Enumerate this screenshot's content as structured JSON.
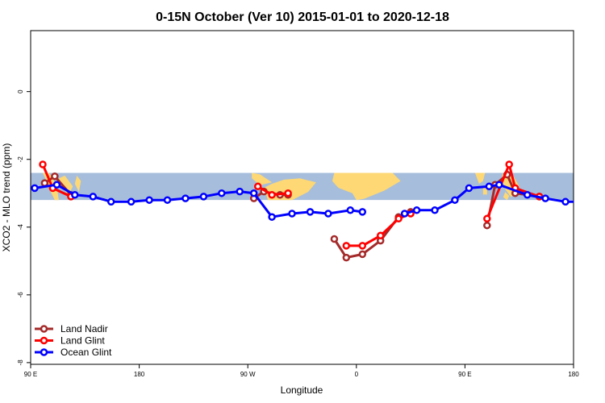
{
  "chart_data": {
    "type": "line",
    "title": "0-15N October (Ver 10)   2015-01-01 to 2020-12-18",
    "xlabel": "Longitude",
    "ylabel": "XCO2 - MLO trend (ppm)",
    "xlim": [
      -90,
      180
    ],
    "ylim": [
      -8.05,
      1.8
    ],
    "x_ticks": [
      {
        "value": -90,
        "label": "90 E"
      },
      {
        "value": -36,
        "label": "180"
      },
      {
        "value": 18,
        "label": "90 W"
      },
      {
        "value": 72,
        "label": "0"
      },
      {
        "value": 126,
        "label": "90 E"
      },
      {
        "value": 180,
        "label": "180"
      }
    ],
    "y_ticks": [
      {
        "value": 0,
        "label": "0"
      },
      {
        "value": -2,
        "label": "-2"
      },
      {
        "value": -4,
        "label": "-4"
      },
      {
        "value": -6,
        "label": "-6"
      },
      {
        "value": -8,
        "label": "-8"
      }
    ],
    "map_band": {
      "ymin": -3.2,
      "ymax": -2.4,
      "ocean_color": "#a6bddb",
      "land_color": "#fdd875"
    },
    "legend_position": "bottom-left",
    "series": [
      {
        "name": "Land Nadir",
        "color": "#a52a2a",
        "segments": [
          [
            [
              -83,
              -2.7
            ],
            [
              -78,
              -2.5
            ],
            [
              -70,
              -3.05
            ]
          ],
          [
            [
              21,
              -3.15
            ],
            [
              26,
              -2.95
            ],
            [
              34,
              -3.05
            ],
            [
              38,
              -3.05
            ]
          ],
          [
            [
              61,
              -4.35
            ],
            [
              67,
              -4.9
            ],
            [
              75,
              -4.8
            ],
            [
              84,
              -4.4
            ],
            [
              93,
              -3.7
            ],
            [
              99,
              -3.55
            ]
          ],
          [
            [
              137,
              -3.95
            ],
            [
              141,
              -2.75
            ],
            [
              147,
              -2.45
            ],
            [
              151,
              -3.0
            ],
            [
              163,
              -3.1
            ]
          ]
        ]
      },
      {
        "name": "Land Glint",
        "color": "#ff0000",
        "segments": [
          [
            [
              -84,
              -2.15
            ],
            [
              -79,
              -2.85
            ],
            [
              -70,
              -3.1
            ]
          ],
          [
            [
              23,
              -2.8
            ],
            [
              30,
              -3.05
            ],
            [
              38,
              -3.0
            ]
          ],
          [
            [
              67,
              -4.55
            ],
            [
              75,
              -4.55
            ],
            [
              84,
              -4.25
            ],
            [
              93,
              -3.75
            ],
            [
              99,
              -3.6
            ]
          ],
          [
            [
              137,
              -3.75
            ],
            [
              148,
              -2.15
            ],
            [
              151,
              -2.85
            ],
            [
              163,
              -3.1
            ]
          ]
        ]
      },
      {
        "name": "Ocean Glint",
        "color": "#0000ff",
        "segments": [
          [
            [
              -88,
              -2.85
            ],
            [
              -77,
              -2.75
            ],
            [
              -68,
              -3.05
            ],
            [
              -59,
              -3.1
            ],
            [
              -50,
              -3.25
            ],
            [
              -40,
              -3.25
            ],
            [
              -31,
              -3.2
            ],
            [
              -22,
              -3.2
            ],
            [
              -13,
              -3.15
            ],
            [
              -4,
              -3.1
            ],
            [
              5,
              -3.0
            ],
            [
              14,
              -2.95
            ],
            [
              21,
              -3.0
            ],
            [
              30,
              -3.7
            ],
            [
              40,
              -3.6
            ],
            [
              49,
              -3.55
            ],
            [
              58,
              -3.6
            ],
            [
              69,
              -3.5
            ],
            [
              75,
              -3.55
            ]
          ],
          [
            [
              96,
              -3.6
            ],
            [
              102,
              -3.5
            ],
            [
              111,
              -3.5
            ],
            [
              121,
              -3.2
            ],
            [
              128,
              -2.85
            ],
            [
              138,
              -2.8
            ],
            [
              143,
              -2.75
            ],
            [
              157,
              -3.05
            ],
            [
              166,
              -3.15
            ],
            [
              176,
              -3.25
            ],
            [
              185,
              -3.25
            ]
          ]
        ]
      }
    ]
  }
}
